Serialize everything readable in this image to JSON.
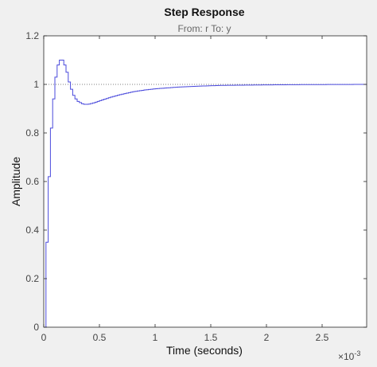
{
  "figure": {
    "title": "Step Response",
    "subtitle": "From: r  To: y",
    "background_color": "#f0f0f0",
    "axes_color": "#ffffff",
    "line_color": "#4a4adc",
    "reference_color": "#555555"
  },
  "chart_data": {
    "type": "line",
    "title": "Step Response",
    "subtitle": "From: r  To: y",
    "xlabel": "Time (seconds)",
    "ylabel": "Amplitude",
    "x_exponent_label": "×10",
    "x_exponent_power": "-3",
    "xlim": [
      0,
      0.0029
    ],
    "ylim": [
      0,
      1.2
    ],
    "x_ticks": [
      0,
      0.0005,
      0.001,
      0.0015,
      0.002,
      0.0025
    ],
    "x_tick_labels": [
      "0",
      "0.5",
      "1",
      "1.5",
      "2",
      "2.5"
    ],
    "y_ticks": [
      0,
      0.2,
      0.4,
      0.6,
      0.8,
      1.0,
      1.2
    ],
    "y_tick_labels": [
      "0",
      "0.2",
      "0.4",
      "0.6",
      "0.8",
      "1",
      "1.2"
    ],
    "grid": false,
    "reference_line": 1.0,
    "series": [
      {
        "style": "stairs",
        "sample_time": 2e-05,
        "x": [
          0,
          2e-05,
          4e-05,
          6e-05,
          8e-05,
          0.0001,
          0.00012,
          0.00014,
          0.00016,
          0.00018,
          0.0002,
          0.00022,
          0.00024,
          0.00026,
          0.00028,
          0.0003,
          0.00032,
          0.00034,
          0.00036,
          0.00038,
          0.0004,
          0.00045,
          0.0005,
          0.0006,
          0.0007,
          0.0008,
          0.0009,
          0.001,
          0.0012,
          0.0014,
          0.0016,
          0.0018,
          0.002,
          0.0023,
          0.0026,
          0.0029
        ],
        "y": [
          0,
          0.35,
          0.62,
          0.82,
          0.94,
          1.03,
          1.08,
          1.1,
          1.1,
          1.08,
          1.05,
          1.01,
          0.98,
          0.955,
          0.94,
          0.93,
          0.925,
          0.92,
          0.918,
          0.918,
          0.919,
          0.925,
          0.933,
          0.948,
          0.96,
          0.97,
          0.977,
          0.982,
          0.989,
          0.993,
          0.996,
          0.997,
          0.998,
          0.999,
          0.9995,
          1.0
        ]
      }
    ]
  }
}
